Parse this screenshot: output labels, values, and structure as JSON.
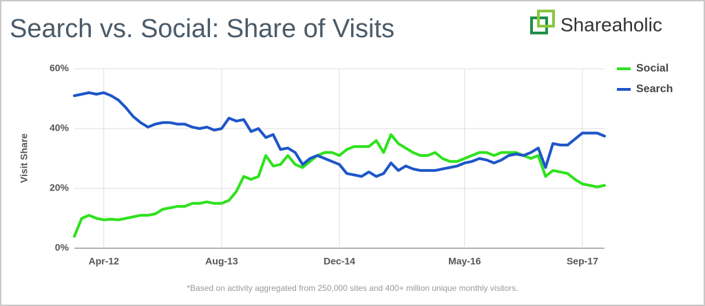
{
  "chart_data": {
    "type": "line",
    "title": "Search vs. Social: Share of Visits",
    "brand": "Shareaholic",
    "y_label": "Visit Share",
    "footnote": "*Based on activity aggregated from 250,000 sites and 400+ million unique monthly visitors.",
    "categories": [
      null,
      null,
      null,
      null,
      "Apr-12",
      null,
      null,
      null,
      null,
      null,
      null,
      null,
      null,
      null,
      null,
      null,
      null,
      null,
      null,
      null,
      "Aug-13",
      null,
      null,
      null,
      null,
      null,
      null,
      null,
      null,
      null,
      null,
      null,
      null,
      null,
      null,
      null,
      "Dec-14",
      null,
      null,
      null,
      null,
      null,
      null,
      null,
      null,
      null,
      null,
      null,
      null,
      null,
      null,
      null,
      null,
      "May-16",
      null,
      null,
      null,
      null,
      null,
      null,
      null,
      null,
      null,
      null,
      null,
      null,
      null,
      null,
      null,
      "Sep-17",
      null,
      null,
      null
    ],
    "series": [
      {
        "name": "Social",
        "color": "#2fe21d",
        "values": [
          4,
          10,
          11,
          10,
          9.5,
          9.7,
          9.5,
          10,
          10.5,
          11,
          11,
          11.5,
          13,
          13.5,
          14,
          14,
          15,
          15,
          15.5,
          15,
          15,
          16,
          19,
          24,
          23,
          24,
          31,
          27.5,
          28,
          31,
          28,
          27,
          29,
          31,
          32,
          32,
          31,
          33,
          34,
          34,
          34,
          36,
          32,
          38,
          35,
          33.5,
          32,
          31,
          31,
          32,
          30,
          29,
          29,
          30,
          31,
          32,
          32,
          31,
          32,
          32,
          32,
          31,
          30,
          31,
          24,
          26,
          25.5,
          25,
          23,
          21.5,
          21,
          20.5,
          21
        ]
      },
      {
        "name": "Search",
        "color": "#1e56c8",
        "values": [
          51,
          51.5,
          52,
          51.5,
          52,
          51,
          49.5,
          47,
          44,
          42,
          40.5,
          41.5,
          42,
          42,
          41.5,
          41.5,
          40.5,
          40,
          40.5,
          39.5,
          40,
          43.5,
          42.5,
          43,
          39,
          40,
          37,
          38,
          33,
          33.5,
          32,
          28,
          30,
          31,
          30,
          29,
          28,
          25,
          24.5,
          24,
          25.5,
          24,
          25,
          28.5,
          26,
          27.5,
          26.5,
          26,
          26,
          26,
          26.5,
          27,
          27.5,
          28.5,
          29,
          30,
          29.5,
          28.5,
          29.5,
          31,
          31.5,
          31,
          32,
          33.5,
          27,
          35,
          34.5,
          34.5,
          36.5,
          38.5,
          38.5,
          38.5,
          37.5
        ]
      }
    ],
    "ylim": [
      0,
      60
    ],
    "yticks": [
      {
        "value": 0,
        "label": "0%"
      },
      {
        "value": 20,
        "label": "20%"
      },
      {
        "value": 40,
        "label": "40%"
      },
      {
        "value": 60,
        "label": "60%"
      }
    ],
    "grid": true
  }
}
